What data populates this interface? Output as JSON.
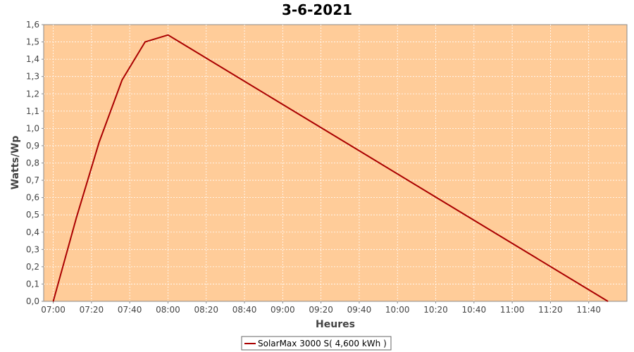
{
  "chart_data": {
    "type": "line",
    "title": "3-6-2021",
    "xlabel": "Heures",
    "ylabel": "Watts/Wp",
    "x_ticks": [
      "07:00",
      "07:20",
      "07:40",
      "08:00",
      "08:20",
      "08:40",
      "09:00",
      "09:20",
      "09:40",
      "10:00",
      "10:20",
      "10:40",
      "11:00",
      "11:20",
      "11:40"
    ],
    "y_ticks": [
      "0,0",
      "0,1",
      "0,2",
      "0,3",
      "0,4",
      "0,5",
      "0,6",
      "0,7",
      "0,8",
      "0,9",
      "1,0",
      "1,1",
      "1,2",
      "1,3",
      "1,4",
      "1,5",
      "1,6"
    ],
    "ylim": [
      0,
      1.6
    ],
    "xlim": [
      "06:55",
      "12:00"
    ],
    "grid": true,
    "legend_position": "bottom",
    "series": [
      {
        "name": "SolarMax 3000 S( 4,600 kWh )",
        "color": "#aa0000",
        "points": [
          {
            "x": "07:00",
            "y": 0.0
          },
          {
            "x": "07:12",
            "y": 0.48
          },
          {
            "x": "07:24",
            "y": 0.92
          },
          {
            "x": "07:36",
            "y": 1.28
          },
          {
            "x": "07:48",
            "y": 1.5
          },
          {
            "x": "08:00",
            "y": 1.54
          },
          {
            "x": "11:50",
            "y": 0.0
          }
        ]
      }
    ],
    "colors": {
      "plot_background": "#ffcc99",
      "grid": "#ffffff",
      "line": "#aa0000"
    }
  }
}
